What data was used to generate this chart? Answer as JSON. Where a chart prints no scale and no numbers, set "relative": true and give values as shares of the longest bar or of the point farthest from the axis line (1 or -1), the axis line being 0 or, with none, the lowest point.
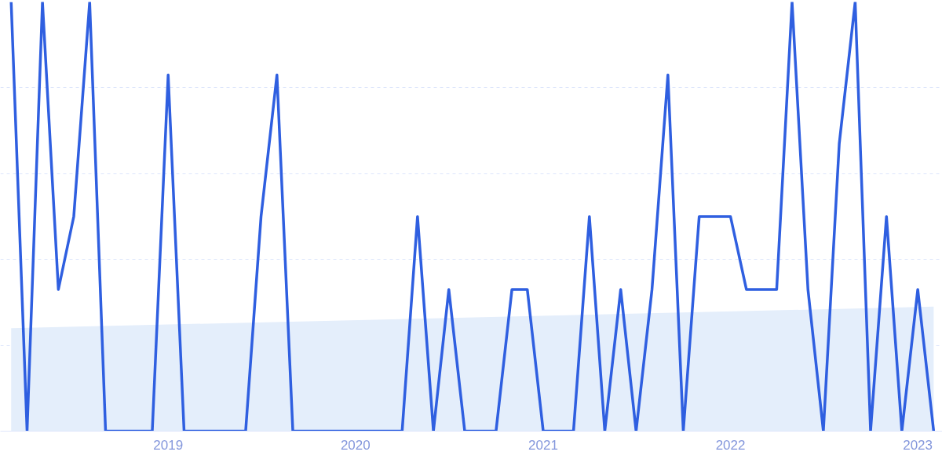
{
  "chart_data": {
    "type": "line",
    "relative": true,
    "grid": "y",
    "marker": "none",
    "line_style": "solid",
    "x": [
      "2018-03",
      "2018-04",
      "2018-05",
      "2018-06",
      "2018-07",
      "2018-08",
      "2018-09",
      "2018-10",
      "2018-11",
      "2018-12",
      "2019-01",
      "2019-02",
      "2019-03",
      "2019-04",
      "2019-05",
      "2019-06",
      "2019-07",
      "2019-08",
      "2019-09",
      "2019-10",
      "2019-11",
      "2019-12",
      "2020-01",
      "2020-02",
      "2020-03",
      "2020-04",
      "2020-05",
      "2020-06",
      "2020-07",
      "2020-08",
      "2020-09",
      "2020-10",
      "2020-11",
      "2020-12",
      "2021-01",
      "2021-02",
      "2021-03",
      "2021-04",
      "2021-05",
      "2021-06",
      "2021-07",
      "2021-08",
      "2021-09",
      "2021-10",
      "2021-11",
      "2021-12",
      "2022-01",
      "2022-02",
      "2022-03",
      "2022-04",
      "2022-05",
      "2022-06",
      "2022-07",
      "2022-08",
      "2022-09",
      "2022-10",
      "2022-11",
      "2022-12",
      "2023-01",
      "2023-02"
    ],
    "xlim": [
      "2018-02-08",
      "2023-02-18"
    ],
    "xticks": [
      {
        "value": "2019-01-01",
        "label": "2019"
      },
      {
        "value": "2020-01-01",
        "label": "2020"
      },
      {
        "value": "2021-01-01",
        "label": "2021"
      },
      {
        "value": "2022-01-01",
        "label": "2022"
      },
      {
        "value": "2023-01-01",
        "label": "2023"
      }
    ],
    "series": [
      {
        "type": "area",
        "color": "#e4eefb",
        "x": [
          "2018-03",
          "2023-02"
        ],
        "values": [
          0.24,
          0.29
        ]
      },
      {
        "color": "#2f5fe0",
        "values": [
          1,
          0,
          1,
          0.33,
          0.5,
          1,
          0,
          0,
          0,
          0,
          0.83,
          0,
          0,
          0,
          0,
          0,
          0.5,
          0.83,
          0,
          0,
          0,
          0,
          0,
          0,
          0,
          0,
          0.5,
          0,
          0.33,
          0,
          0,
          0,
          0.33,
          0.33,
          0,
          0,
          0,
          0.5,
          0,
          0.33,
          0,
          0.33,
          0.83,
          0,
          0.5,
          0.5,
          0.5,
          0.33,
          0.33,
          0.33,
          1,
          0.33,
          0,
          0.67,
          1,
          0,
          0.5,
          0,
          0.33,
          0
        ]
      }
    ]
  }
}
